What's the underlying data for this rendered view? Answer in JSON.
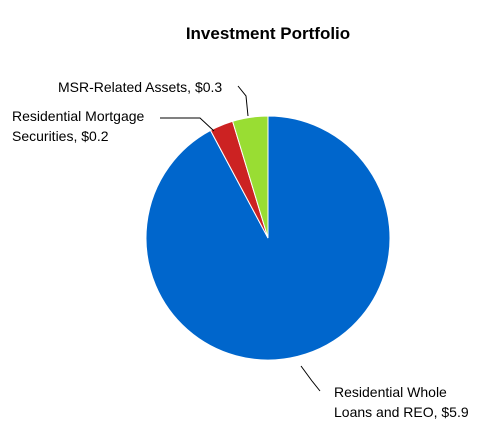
{
  "chart_data": {
    "type": "pie",
    "title": "Investment Portfolio",
    "slices": [
      {
        "name": "Residential Whole Loans and REO",
        "value": 5.9,
        "label_lines": [
          "Residential Whole",
          "Loans and REO, $5.9"
        ],
        "color": "#0066CC"
      },
      {
        "name": "Residential Mortgage Securities",
        "value": 0.2,
        "label_lines": [
          "Residential Mortgage",
          "Securities, $0.2"
        ],
        "color": "#CC2222"
      },
      {
        "name": "MSR-Related Assets",
        "value": 0.3,
        "label_lines": [
          "MSR-Related Assets, $0.3"
        ],
        "color": "#99DD33"
      }
    ],
    "start_angle": "12 o'clock",
    "direction": "clockwise",
    "legend": "none",
    "labels": "outside with leader lines"
  }
}
